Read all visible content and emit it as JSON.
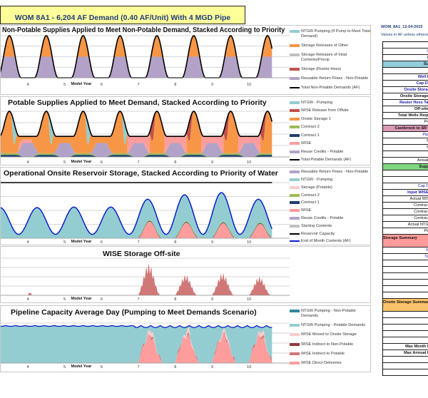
{
  "header": {
    "title": "WOM 8A1 - 6,204 AF Demand (0.40 AF/Unit) With 4 MGD Pipe"
  },
  "colors": {
    "ntgw": "#93cdd1",
    "orange": "#f79646",
    "gray": "#c0c0c0",
    "red": "#c0504d",
    "purple": "#b3a2c7",
    "wise": "#ff9d9d",
    "lightpink": "#f8cccc",
    "green": "#9bbb59",
    "navy": "#1f3f6e",
    "darkred": "#953735",
    "darkteal": "#31859c",
    "blue": "#0a1fc8",
    "black": "#000000",
    "wiseind": "#d07878"
  },
  "chart_data": [
    {
      "type": "area",
      "title": "Non-Potable Supplies Applied to Meet Non-Potable Demand, Stacked According to Priority",
      "xlabel": "Model Year",
      "x_ticks": [
        "4",
        "5",
        "6",
        "7",
        "8",
        "9",
        "10"
      ],
      "grid": true,
      "legend_position": "right",
      "legend": [
        {
          "name": "NTGW Pumping (If Pump to Meet Total Demand)",
          "color": "#93cdd1",
          "kind": "area"
        },
        {
          "name": "Storage Releases of Other",
          "color": "#f79646",
          "kind": "area"
        },
        {
          "name": "Storage Releases of Intial Contents/Precip",
          "color": "#c0c0c0",
          "kind": "area"
        },
        {
          "name": "Storage (Rueter-Hess)",
          "color": "#c0504d",
          "kind": "area"
        },
        {
          "name": "Reusable Return Flows - Non-Potable",
          "color": "#b3a2c7",
          "kind": "area"
        },
        {
          "name": "Total Non-Potable Demands (AF)",
          "color": "#000000",
          "kind": "line"
        }
      ]
    },
    {
      "type": "area",
      "title": "Potable Supplies Applied to Meet Demand, Stacked According to Priority",
      "xlabel": "Model Year",
      "x_ticks": [
        "4",
        "5",
        "6",
        "7",
        "8",
        "9",
        "10"
      ],
      "grid": true,
      "legend_position": "right",
      "legend": [
        {
          "name": "NTGW - Pumping",
          "color": "#93cdd1",
          "kind": "area"
        },
        {
          "name": "WISE Release from Offsite",
          "color": "#c0504d",
          "kind": "area"
        },
        {
          "name": "Onsite Storage 1",
          "color": "#f79646",
          "kind": "area"
        },
        {
          "name": "Contract 2",
          "color": "#9bbb59",
          "kind": "area"
        },
        {
          "name": "Contract 1",
          "color": "#1f3f6e",
          "kind": "area"
        },
        {
          "name": "WISE",
          "color": "#ff9d9d",
          "kind": "area"
        },
        {
          "name": "Reuse Credits - Potable",
          "color": "#b3a2c7",
          "kind": "area"
        },
        {
          "name": "Total Potable Demands (AF)",
          "color": "#000000",
          "kind": "line"
        }
      ]
    },
    {
      "type": "area",
      "title": "Operational Onsite Reservoir Storage, Stacked According to Priority of Water",
      "xlabel": "Model Year",
      "x_ticks": [
        "4",
        "5",
        "6",
        "7",
        "8",
        "9",
        "10"
      ],
      "grid": true,
      "legend_position": "right",
      "legend": [
        {
          "name": "Reusable Return Flows - Non-Potable",
          "color": "#b3a2c7",
          "kind": "area"
        },
        {
          "name": "NTGW - Pumping",
          "color": "#93cdd1",
          "kind": "area"
        },
        {
          "name": "Storage (Potable)",
          "color": "#f8cccc",
          "kind": "area"
        },
        {
          "name": "Contract 2",
          "color": "#9bbb59",
          "kind": "area"
        },
        {
          "name": "Contract 1",
          "color": "#1f3f6e",
          "kind": "area"
        },
        {
          "name": "WISE",
          "color": "#ff9d9d",
          "kind": "area"
        },
        {
          "name": "Reuse Credits - Potable",
          "color": "#b3a2c7",
          "kind": "area"
        },
        {
          "name": "Starting Contents",
          "color": "#c0c0c0",
          "kind": "area"
        },
        {
          "name": "Reservoir Capacity",
          "color": "#000000",
          "kind": "line"
        },
        {
          "name": "End of Month Contents (AF)",
          "color": "#0a1fc8",
          "kind": "line"
        }
      ]
    },
    {
      "type": "area",
      "title": "WISE Storage Off-site",
      "xlabel": "Model Year",
      "x_ticks": [
        "4",
        "5",
        "6",
        "7",
        "8",
        "9",
        "10"
      ],
      "grid": true,
      "legend": []
    },
    {
      "type": "area",
      "title": "Pipeline Capacity Average Day (Pumping to Meet Demands Scenario)",
      "xlabel": "Model Year",
      "x_ticks": [
        "4",
        "5",
        "6",
        "7",
        "8",
        "9",
        "10"
      ],
      "grid": true,
      "legend_position": "right",
      "legend": [
        {
          "name": "NTGW Pumping - Non-Potable Demands",
          "color": "#31859c",
          "kind": "area"
        },
        {
          "name": "NTGW Pumping - Potable Demands",
          "color": "#93cdd1",
          "kind": "area"
        },
        {
          "name": "WISE Moved to Onsite Storage",
          "color": "#f8cccc",
          "kind": "area"
        },
        {
          "name": "WISE Indirect to Non-Potable",
          "color": "#953735",
          "kind": "area"
        },
        {
          "name": "WISE Indirect to Potable",
          "color": "#d07878",
          "kind": "area"
        },
        {
          "name": "WISE Direct Deliveries",
          "color": "#ff9d9d",
          "kind": "area"
        }
      ]
    }
  ],
  "right_panel": {
    "file_label": "WOM_8A1_12-04-2015",
    "units_note": "Values in AF unless otherw",
    "rows": [
      {
        "text": "",
        "style": ""
      },
      {
        "text": "Inp",
        "style": "blue"
      },
      {
        "text": "Re",
        "style": ""
      },
      {
        "text": "Sum",
        "style": "b",
        "bg": "#92cddc"
      },
      {
        "text": "",
        "style": ""
      },
      {
        "text": "Well Pu",
        "style": "b blue"
      },
      {
        "text": "Cap Deli",
        "style": "b blue"
      },
      {
        "text": "Onsite Storage",
        "style": "b blue"
      },
      {
        "text": "Onsite Storage A",
        "style": "b"
      },
      {
        "text": "Reuter Hess Targ",
        "style": "b blue"
      },
      {
        "text": "Off-site R",
        "style": "b"
      },
      {
        "text": "Total Wells Requir",
        "style": "b"
      },
      {
        "text": "Perc",
        "style": ""
      },
      {
        "text": "Castlerock to SR Mi",
        "style": "b",
        "bg": "#d99ab4"
      },
      {
        "text": "Pipeli",
        "style": "blue"
      },
      {
        "text": "Ma",
        "style": ""
      },
      {
        "text": "Mo",
        "style": ""
      },
      {
        "text": "",
        "style": ""
      },
      {
        "text": "Actual N",
        "style": ""
      },
      {
        "text": "Supply",
        "style": "b",
        "bg": "#7fd67f"
      },
      {
        "text": "C",
        "style": "blue"
      },
      {
        "text": "",
        "style": ""
      },
      {
        "text": "Cap Del",
        "style": "blue"
      },
      {
        "text": "Input WISE A",
        "style": "b blue"
      },
      {
        "text": "Actual WISE",
        "style": ""
      },
      {
        "text": "Contract 1",
        "style": ""
      },
      {
        "text": "Contract 2",
        "style": ""
      },
      {
        "text": "Contract 3",
        "style": ""
      },
      {
        "text": "Actual NTGW",
        "style": ""
      },
      {
        "text": "Perc",
        "style": ""
      },
      {
        "text": "Storage Summary",
        "style": "b tall",
        "bg": "#ff9a9a"
      },
      {
        "text": "% c",
        "style": "blue"
      },
      {
        "text": "Targ",
        "style": "blue"
      },
      {
        "text": "",
        "style": ""
      },
      {
        "text": "",
        "style": ""
      },
      {
        "text": "",
        "style": ""
      },
      {
        "text": "",
        "style": ""
      },
      {
        "text": "",
        "style": ""
      },
      {
        "text": "",
        "style": ""
      },
      {
        "text": "Onsite Storage Summar",
        "style": "b tall",
        "bg": "#fac36a"
      },
      {
        "text": "",
        "style": ""
      },
      {
        "text": "A",
        "style": ""
      },
      {
        "text": "",
        "style": ""
      },
      {
        "text": "",
        "style": ""
      },
      {
        "text": "",
        "style": ""
      },
      {
        "text": "Max Month Re",
        "style": "b"
      },
      {
        "text": "Max Annual Re",
        "style": "b"
      },
      {
        "text": "",
        "style": ""
      },
      {
        "text": "",
        "style": ""
      },
      {
        "text": "",
        "style": ""
      }
    ]
  }
}
